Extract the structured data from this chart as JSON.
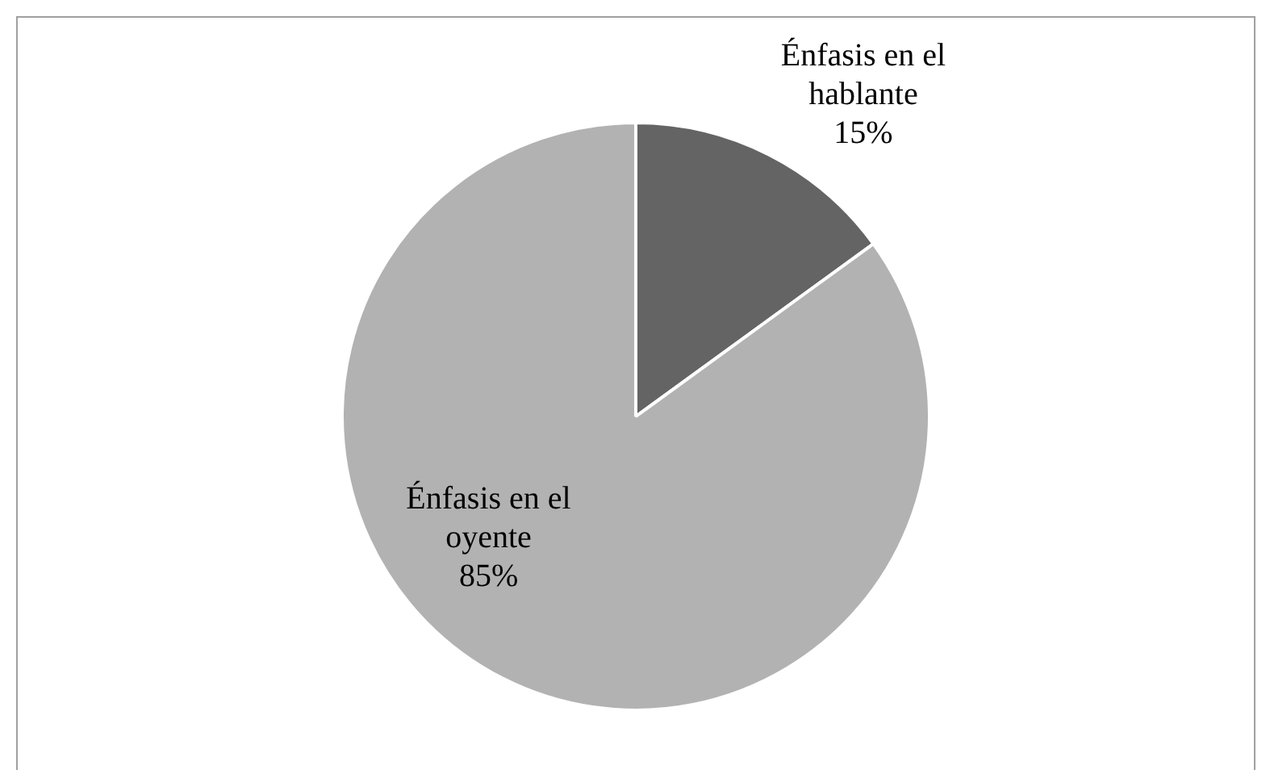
{
  "chart_data": {
    "type": "pie",
    "categories": [
      "Énfasis en el hablante",
      "Énfasis en el oyente"
    ],
    "values": [
      15,
      85
    ],
    "colors": [
      "#646464",
      "#b2b2b2"
    ],
    "value_labels": [
      "15%",
      "85%"
    ],
    "legend": false
  }
}
